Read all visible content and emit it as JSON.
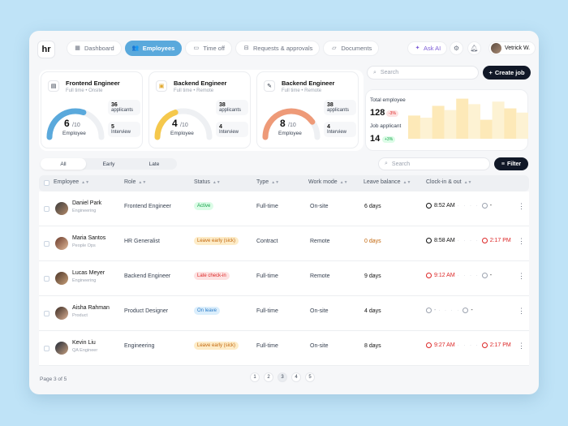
{
  "nav": {
    "logo": "hr",
    "items": [
      {
        "label": "Dashboard",
        "icon": "grid-icon"
      },
      {
        "label": "Employees",
        "icon": "users-icon"
      },
      {
        "label": "Time off",
        "icon": "calendar-icon"
      },
      {
        "label": "Requests & approvals",
        "icon": "inbox-icon"
      },
      {
        "label": "Documents",
        "icon": "folder-icon"
      }
    ],
    "active": "Employees",
    "ask_ai": "Ask AI",
    "user_name": "Vetrick W."
  },
  "jobs": [
    {
      "title": "Frontend Engineer",
      "type": "Full time",
      "mode": "Onsite",
      "value": 6,
      "max": "/10",
      "label": "Employee",
      "applicants": "36",
      "applicants_label": "applicants",
      "interview": "5",
      "interview_label": "Interview",
      "color": "#5aa9dc"
    },
    {
      "title": "Backend Engineer",
      "type": "Full time",
      "mode": "Remote",
      "value": 4,
      "max": "/10",
      "label": "Employee",
      "applicants": "38",
      "applicants_label": "applicants",
      "interview": "4",
      "interview_label": "Interview",
      "color": "#f5c84c"
    },
    {
      "title": "Backend Engineer",
      "type": "Full time",
      "mode": "Remote",
      "value": 8,
      "max": "/10",
      "label": "Employee",
      "applicants": "38",
      "applicants_label": "applicants",
      "interview": "4",
      "interview_label": "Interview",
      "color": "#ee9a78"
    }
  ],
  "top_search": {
    "placeholder": "Search"
  },
  "create_job": "Create job",
  "stats": {
    "total_label": "Total employee",
    "total_value": "128",
    "total_change": "-3%",
    "applicant_label": "Job applicant",
    "applicant_value": "14",
    "applicant_change": "+3%",
    "bars": [
      0.55,
      0.5,
      0.78,
      0.68,
      0.95,
      0.82,
      0.45,
      0.88,
      0.72,
      0.62
    ]
  },
  "filters": {
    "tabs": [
      "All",
      "Early",
      "Late"
    ],
    "active": "All",
    "search_placeholder": "Search",
    "filter_label": "Filter"
  },
  "table": {
    "headers": [
      "Employee",
      "Role",
      "Status",
      "Type",
      "Work mode",
      "Leave balance",
      "Clock-in & out"
    ],
    "rows": [
      {
        "name": "Daniel Park",
        "dept": "Engineering",
        "role": "Frontend Engineer",
        "status": "Active",
        "status_kind": "green",
        "type": "Full-time",
        "mode": "On-site",
        "leave": "6 days",
        "leave_kind": "normal",
        "clock_in": "8:52 AM",
        "clock_in_kind": "normal",
        "clock_out": "-",
        "clock_out_kind": "normal"
      },
      {
        "name": "Maria Santos",
        "dept": "People Ops",
        "role": "HR Generalist",
        "status": "Leave early (sick)",
        "status_kind": "orange",
        "type": "Contract",
        "mode": "Remote",
        "leave": "0 days",
        "leave_kind": "orange",
        "clock_in": "8:58 AM",
        "clock_in_kind": "normal",
        "clock_out": "2:17 PM",
        "clock_out_kind": "red"
      },
      {
        "name": "Lucas Meyer",
        "dept": "Engineering",
        "role": "Backend Engineer",
        "status": "Late check-in",
        "status_kind": "red",
        "type": "Full-time",
        "mode": "Remote",
        "leave": "9 days",
        "leave_kind": "normal",
        "clock_in": "9:12 AM",
        "clock_in_kind": "red",
        "clock_out": "-",
        "clock_out_kind": "normal"
      },
      {
        "name": "Aisha Rahman",
        "dept": "Product",
        "role": "Product Designer",
        "status": "On leave",
        "status_kind": "blue",
        "type": "Full-time",
        "mode": "On-site",
        "leave": "4 days",
        "leave_kind": "normal",
        "clock_in": "-",
        "clock_in_kind": "muted",
        "clock_out": "-",
        "clock_out_kind": "normal"
      },
      {
        "name": "Kevin Liu",
        "dept": "QA Engineer",
        "role": "Engineering",
        "status": "Leave early (sick)",
        "status_kind": "orange",
        "type": "Full-time",
        "mode": "On-site",
        "leave": "8 days",
        "leave_kind": "normal",
        "clock_in": "9:27 AM",
        "clock_in_kind": "red",
        "clock_out": "2:17 PM",
        "clock_out_kind": "red"
      }
    ]
  },
  "footer": {
    "page_text": "Page 3 of 5",
    "pages": [
      "1",
      "2",
      "3",
      "4",
      "5"
    ],
    "current": "3"
  },
  "colors": {
    "accent": "#5aa9dc",
    "dark": "#111827",
    "red": "#dc2626",
    "orange": "#c2660b"
  }
}
